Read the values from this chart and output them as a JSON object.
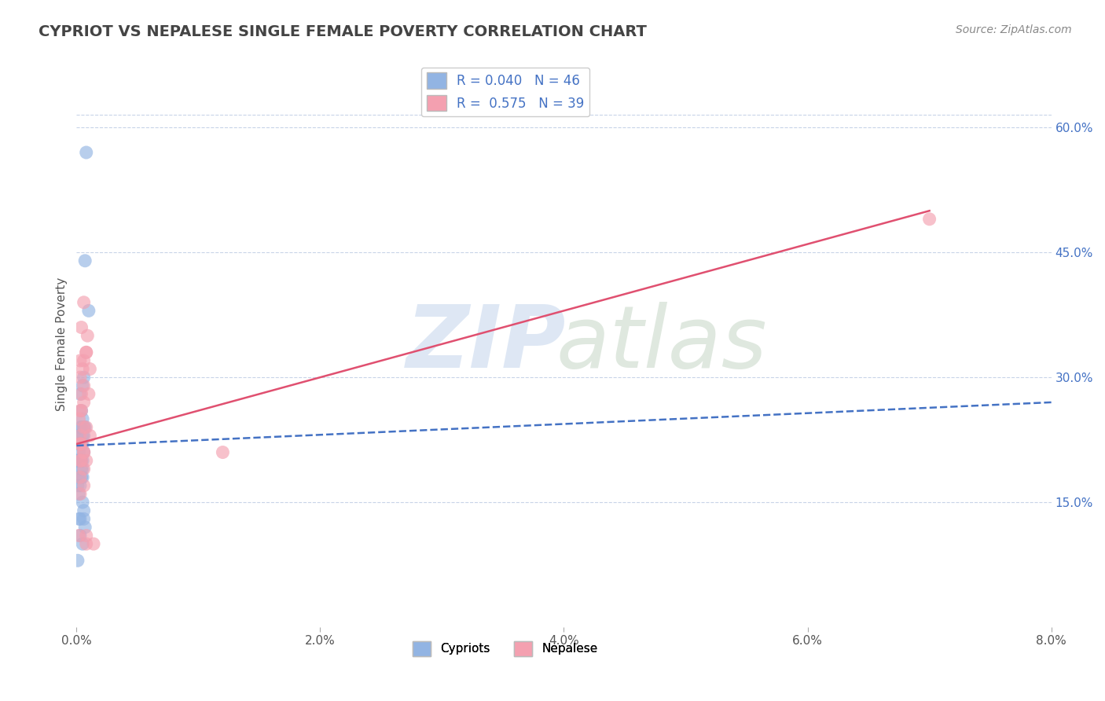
{
  "title": "CYPRIOT VS NEPALESE SINGLE FEMALE POVERTY CORRELATION CHART",
  "source": "Source: ZipAtlas.com",
  "ylabel_left": "Single Female Poverty",
  "xlim": [
    0.0,
    0.08
  ],
  "ylim": [
    0.0,
    0.68
  ],
  "right_yticks": [
    0.15,
    0.3,
    0.45,
    0.6
  ],
  "right_yticklabels": [
    "15.0%",
    "30.0%",
    "45.0%",
    "60.0%"
  ],
  "legend_label_cypriot": "R = 0.040   N = 46",
  "legend_label_nepalese": "R =  0.575   N = 39",
  "bottom_legend": [
    "Cypriots",
    "Nepalese"
  ],
  "cypriot_color": "#92b4e3",
  "nepalese_color": "#f4a0b0",
  "cypriot_line_color": "#4472c4",
  "nepalese_line_color": "#e05070",
  "background_color": "#ffffff",
  "grid_color": "#c8d4e8",
  "cypriot_x": [
    0.0008,
    0.001,
    0.0007,
    0.0005,
    0.0006,
    0.0004,
    0.0003,
    0.0005,
    0.0004,
    0.0002,
    0.0003,
    0.0002,
    0.0004,
    0.0005,
    0.0003,
    0.0006,
    0.0005,
    0.0004,
    0.0002,
    0.0001,
    0.0001,
    0.0003,
    0.0001,
    0.0004,
    0.0006,
    0.0005,
    0.0003,
    0.0002,
    0.0007,
    0.0006,
    0.0005,
    0.0003,
    0.0001,
    0.0004,
    0.0005,
    0.0006,
    0.0002,
    0.0002,
    0.0007,
    0.0001,
    0.0003,
    0.0005,
    0.0004,
    0.0006,
    0.0005,
    0.0003
  ],
  "cypriot_y": [
    0.57,
    0.38,
    0.44,
    0.29,
    0.3,
    0.26,
    0.28,
    0.25,
    0.24,
    0.23,
    0.24,
    0.22,
    0.22,
    0.23,
    0.22,
    0.21,
    0.22,
    0.2,
    0.21,
    0.2,
    0.2,
    0.22,
    0.2,
    0.19,
    0.24,
    0.19,
    0.2,
    0.18,
    0.24,
    0.23,
    0.18,
    0.17,
    0.17,
    0.18,
    0.2,
    0.14,
    0.13,
    0.16,
    0.12,
    0.08,
    0.11,
    0.15,
    0.22,
    0.13,
    0.1,
    0.13
  ],
  "nepalese_x": [
    0.0003,
    0.0006,
    0.0004,
    0.0008,
    0.0005,
    0.0003,
    0.0004,
    0.0006,
    0.0003,
    0.0002,
    0.0004,
    0.0006,
    0.0009,
    0.0003,
    0.0006,
    0.0008,
    0.001,
    0.0006,
    0.0003,
    0.0004,
    0.0008,
    0.0011,
    0.0003,
    0.0006,
    0.0014,
    0.0008,
    0.0006,
    0.0003,
    0.0004,
    0.0006,
    0.0003,
    0.0002,
    0.0011,
    0.0008,
    0.07,
    0.0003,
    0.0006,
    0.0008,
    0.012
  ],
  "nepalese_y": [
    0.32,
    0.39,
    0.36,
    0.33,
    0.31,
    0.3,
    0.28,
    0.27,
    0.26,
    0.25,
    0.26,
    0.24,
    0.35,
    0.23,
    0.32,
    0.33,
    0.28,
    0.29,
    0.22,
    0.22,
    0.24,
    0.31,
    0.22,
    0.21,
    0.1,
    0.2,
    0.19,
    0.18,
    0.2,
    0.21,
    0.16,
    0.11,
    0.23,
    0.1,
    0.49,
    0.2,
    0.17,
    0.11,
    0.21
  ],
  "cypriot_trend_x": [
    0.0,
    0.08
  ],
  "cypriot_trend_y": [
    0.218,
    0.27
  ],
  "nepalese_trend_x": [
    0.0,
    0.07
  ],
  "nepalese_trend_y": [
    0.22,
    0.5
  ]
}
